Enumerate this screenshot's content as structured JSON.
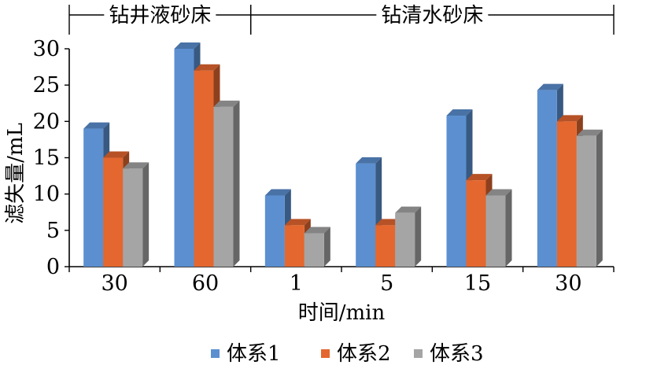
{
  "chart_data": {
    "type": "bar",
    "group_headers": [
      "钻井液砂床",
      "钻清水砂床"
    ],
    "categories": [
      "30",
      "60",
      "1",
      "5",
      "15",
      "30"
    ],
    "category_groups": [
      0,
      0,
      1,
      1,
      1,
      1
    ],
    "series": [
      {
        "name": "体系1",
        "values": [
          19,
          30,
          9.8,
          14.2,
          20.8,
          24.3
        ],
        "color": "#5b8fd0"
      },
      {
        "name": "体系2",
        "values": [
          15,
          27,
          5.7,
          5.7,
          11.9,
          20
        ],
        "color": "#e3672f"
      },
      {
        "name": "体系3",
        "values": [
          13.5,
          22,
          4.6,
          7.4,
          9.8,
          18
        ],
        "color": "#a5a5a5"
      }
    ],
    "xlabel": "时间/min",
    "ylabel": "滤失量/mL",
    "ylim": [
      0,
      30
    ],
    "yticks": [
      0,
      5,
      10,
      15,
      20,
      25,
      30
    ],
    "bar_style": "3d",
    "grid": false,
    "legend_position": "bottom"
  }
}
